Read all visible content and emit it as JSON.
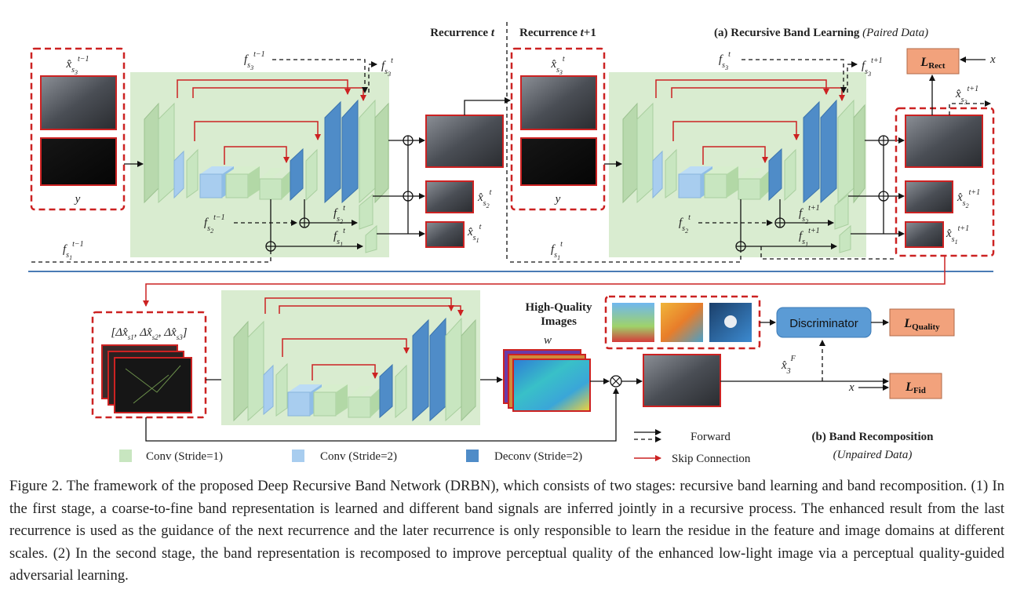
{
  "recurrence": {
    "t": "Recurrence t",
    "t1": "Recurrence t+1"
  },
  "panel_a": {
    "title": "(a) Recursive Band Learning",
    "subtitle": "(Paired Data)"
  },
  "panel_b": {
    "title": "(b) Band Recomposition",
    "subtitle": "(Unpaired Data)"
  },
  "math": {
    "x_s3_tm1": "x̂",
    "y": "y",
    "x": "x",
    "w": "w"
  },
  "losses": {
    "rect": "L",
    "rect_sub": "Rect",
    "quality": "L",
    "quality_sub": "Quality",
    "fid": "L",
    "fid_sub": "Fid"
  },
  "discriminator": "Discriminator",
  "hq_images": {
    "line1": "High-Quality",
    "line2": "Images"
  },
  "legend": {
    "conv1": "Conv (Stride=1)",
    "conv2": "Conv (Stride=2)",
    "deconv": "Deconv (Stride=2)",
    "forward": "Forward",
    "skip": "Skip Connection"
  },
  "colors": {
    "green_panel": "#d9ecd0",
    "conv1": "#c8e6c0",
    "conv2": "#a8cdef",
    "deconv": "#4f8cc8",
    "red": "#cc2222",
    "loss": "#f2a27c",
    "disc": "#5b9bd5",
    "divider": "#4a7bb5"
  },
  "caption": "Figure 2. The framework of the proposed Deep Recursive Band Network (DRBN), which consists of two stages: recursive band learning and band recomposition. (1) In the first stage, a coarse-to-fine band representation is learned and different band signals are inferred jointly in a recursive process. The enhanced result from the last recurrence is used as the guidance of the next recurrence and the later recurrence is only responsible to learn the residue in the feature and image domains at different scales. (2) In the second stage, the band representation is recomposed to improve perceptual quality of the enhanced low-light image via a perceptual quality-guided adversarial learning."
}
